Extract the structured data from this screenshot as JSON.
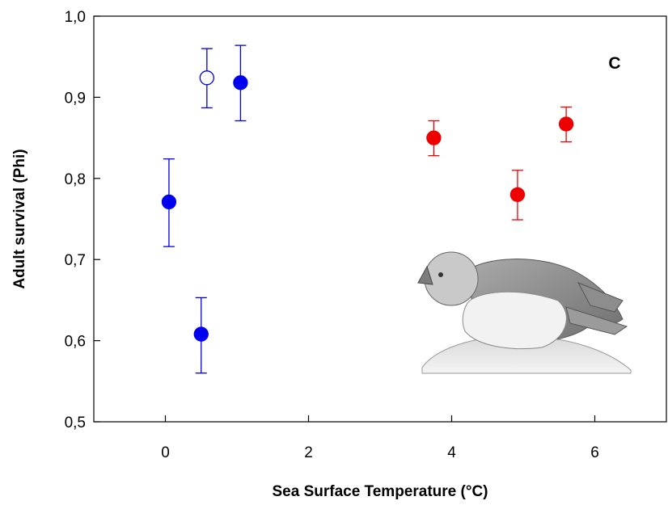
{
  "chart_data": {
    "type": "scatter",
    "xlabel": "Sea Surface Temperature (°C)",
    "ylabel": "Adult survival (Phi)",
    "panel_label": "C",
    "xlim": [
      -1,
      7
    ],
    "ylim": [
      0.5,
      1.0
    ],
    "x_ticks": [
      {
        "value": 0,
        "label": "0"
      },
      {
        "value": 2,
        "label": "2"
      },
      {
        "value": 4,
        "label": "4"
      },
      {
        "value": 6,
        "label": "6"
      }
    ],
    "y_ticks": [
      {
        "value": 0.5,
        "label": "0,5"
      },
      {
        "value": 0.6,
        "label": "0,6"
      },
      {
        "value": 0.7,
        "label": "0,7"
      },
      {
        "value": 0.8,
        "label": "0,8"
      },
      {
        "value": 0.9,
        "label": "0,9"
      },
      {
        "value": 1.0,
        "label": "1,0"
      }
    ],
    "series": [
      {
        "color": "#0000ee",
        "points": [
          {
            "x": 0.05,
            "y": 0.771,
            "lo": 0.716,
            "hi": 0.824,
            "filled": true
          },
          {
            "x": 0.5,
            "y": 0.608,
            "lo": 0.56,
            "hi": 0.653,
            "filled": true
          },
          {
            "x": 0.58,
            "y": 0.924,
            "lo": 0.887,
            "hi": 0.96,
            "filled": false
          },
          {
            "x": 1.05,
            "y": 0.918,
            "lo": 0.871,
            "hi": 0.964,
            "filled": true
          }
        ]
      },
      {
        "color": "#ee0000",
        "points": [
          {
            "x": 3.75,
            "y": 0.85,
            "lo": 0.828,
            "hi": 0.871,
            "filled": true
          },
          {
            "x": 4.92,
            "y": 0.78,
            "lo": 0.749,
            "hi": 0.81,
            "filled": true
          },
          {
            "x": 5.6,
            "y": 0.867,
            "lo": 0.845,
            "hi": 0.888,
            "filled": true
          }
        ]
      }
    ],
    "illustration": "seabird-sketch"
  }
}
